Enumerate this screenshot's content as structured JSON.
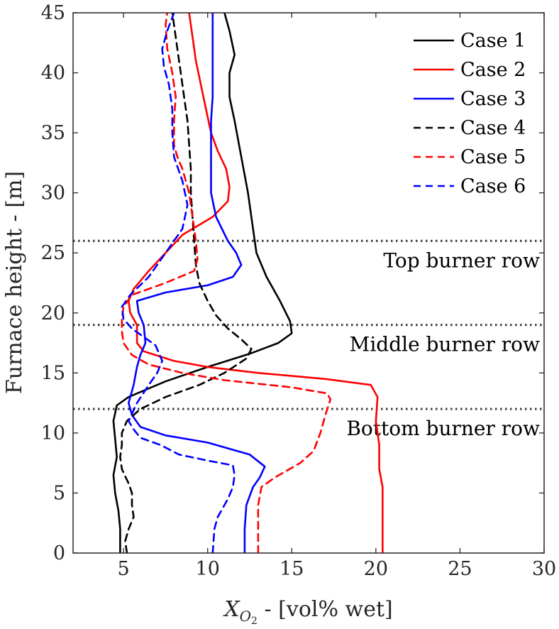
{
  "chart_data": {
    "type": "line",
    "xlabel_prefix": "X",
    "xlabel_subscript": "O",
    "xlabel_subsubscript": "2",
    "xlabel_suffix": " - [vol% wet]",
    "ylabel": "Furnace height - [m]",
    "xlim": [
      2,
      30
    ],
    "ylim": [
      0,
      45
    ],
    "xticks": [
      5,
      10,
      15,
      20,
      25,
      30
    ],
    "yticks": [
      0,
      5,
      10,
      15,
      20,
      25,
      30,
      35,
      40,
      45
    ],
    "grid": false,
    "legend_position": "top-right",
    "reference_lines": [
      {
        "y": 26,
        "label": "Top burner row"
      },
      {
        "y": 19,
        "label": "Middle burner row"
      },
      {
        "y": 12,
        "label": "Bottom burner row"
      }
    ],
    "series": [
      {
        "name": "Case 1",
        "color": "#000000",
        "dash": "solid",
        "points": [
          [
            4.8,
            0
          ],
          [
            4.8,
            2
          ],
          [
            4.7,
            3.5
          ],
          [
            4.5,
            5
          ],
          [
            4.4,
            6.5
          ],
          [
            4.6,
            8
          ],
          [
            4.5,
            9.5
          ],
          [
            4.4,
            11
          ],
          [
            4.6,
            12.3
          ],
          [
            5.3,
            13
          ],
          [
            7.5,
            14.3
          ],
          [
            10,
            15.5
          ],
          [
            12.5,
            16.6
          ],
          [
            14.2,
            17.5
          ],
          [
            15,
            18.3
          ],
          [
            14.9,
            19.3
          ],
          [
            14.3,
            21
          ],
          [
            13.5,
            23
          ],
          [
            12.9,
            25
          ],
          [
            12.7,
            27
          ],
          [
            12.4,
            30
          ],
          [
            12,
            33
          ],
          [
            11.6,
            36
          ],
          [
            11.3,
            38
          ],
          [
            11.3,
            40
          ],
          [
            11.6,
            41.5
          ],
          [
            11.3,
            43.5
          ],
          [
            11,
            45
          ]
        ]
      },
      {
        "name": "Case 2",
        "color": "#ff0000",
        "dash": "solid",
        "points": [
          [
            20.4,
            0
          ],
          [
            20.4,
            3
          ],
          [
            20.4,
            5.5
          ],
          [
            20.2,
            7
          ],
          [
            20.2,
            9
          ],
          [
            20.0,
            11
          ],
          [
            20.1,
            13
          ],
          [
            19.7,
            14
          ],
          [
            17,
            14.5
          ],
          [
            13,
            15
          ],
          [
            10,
            15.5
          ],
          [
            8,
            16
          ],
          [
            6.2,
            16.8
          ],
          [
            5.8,
            17.5
          ],
          [
            5.8,
            19
          ],
          [
            5.4,
            20
          ],
          [
            5.3,
            21
          ],
          [
            5.6,
            22
          ],
          [
            6.5,
            23.5
          ],
          [
            7.5,
            25
          ],
          [
            8.5,
            26.5
          ],
          [
            10.3,
            28
          ],
          [
            11.2,
            29.3
          ],
          [
            11.3,
            30.5
          ],
          [
            11.1,
            32
          ],
          [
            10.6,
            33.5
          ],
          [
            10.2,
            35
          ],
          [
            9.9,
            37
          ],
          [
            9.6,
            39
          ],
          [
            9.3,
            41
          ],
          [
            9.1,
            43
          ],
          [
            8.9,
            45
          ]
        ]
      },
      {
        "name": "Case 3",
        "color": "#0000ff",
        "dash": "solid",
        "points": [
          [
            12.2,
            0
          ],
          [
            12.2,
            2
          ],
          [
            12.3,
            4
          ],
          [
            12.7,
            5.5
          ],
          [
            13.1,
            6.3
          ],
          [
            13.4,
            7.2
          ],
          [
            12.5,
            8.2
          ],
          [
            10,
            9.2
          ],
          [
            7.5,
            9.8
          ],
          [
            6,
            10.5
          ],
          [
            5.5,
            11.5
          ],
          [
            5.3,
            12.5
          ],
          [
            5.6,
            14
          ],
          [
            5.8,
            15.5
          ],
          [
            6,
            16.5
          ],
          [
            6.3,
            17.5
          ],
          [
            6.2,
            19
          ],
          [
            5.9,
            20
          ],
          [
            5.8,
            21
          ],
          [
            7.5,
            21.7
          ],
          [
            10,
            22.3
          ],
          [
            11.5,
            23
          ],
          [
            12,
            24
          ],
          [
            11.7,
            25
          ],
          [
            11.2,
            26
          ],
          [
            10.5,
            28
          ],
          [
            10.2,
            30
          ],
          [
            10.2,
            32
          ],
          [
            10.2,
            34
          ],
          [
            10.2,
            36
          ],
          [
            10.3,
            38
          ],
          [
            10.3,
            40
          ],
          [
            10.3,
            42
          ],
          [
            10.3,
            45
          ]
        ]
      },
      {
        "name": "Case 4",
        "color": "#000000",
        "dash": "dashed",
        "points": [
          [
            5.2,
            0
          ],
          [
            5.1,
            1
          ],
          [
            5.3,
            2
          ],
          [
            5.6,
            3
          ],
          [
            5.5,
            4
          ],
          [
            5.5,
            5
          ],
          [
            5.3,
            5.8
          ],
          [
            5.1,
            6.4
          ],
          [
            4.9,
            7
          ],
          [
            4.8,
            8
          ],
          [
            4.9,
            9
          ],
          [
            4.9,
            10
          ],
          [
            5.2,
            11
          ],
          [
            6,
            12
          ],
          [
            7.5,
            13
          ],
          [
            9.5,
            14
          ],
          [
            11,
            15
          ],
          [
            12.3,
            16.2
          ],
          [
            12.6,
            17
          ],
          [
            12,
            17.8
          ],
          [
            11.2,
            18.7
          ],
          [
            10.5,
            19.8
          ],
          [
            10,
            21
          ],
          [
            9.5,
            22.5
          ],
          [
            9.3,
            24
          ],
          [
            9.2,
            26
          ],
          [
            9.1,
            28
          ],
          [
            9.0,
            30
          ],
          [
            9.0,
            32
          ],
          [
            8.9,
            34
          ],
          [
            8.8,
            36
          ],
          [
            8.6,
            38
          ],
          [
            8.4,
            40
          ],
          [
            8.2,
            42
          ],
          [
            8.0,
            44
          ],
          [
            7.9,
            45
          ]
        ]
      },
      {
        "name": "Case 5",
        "color": "#ff0000",
        "dash": "dashed",
        "points": [
          [
            13,
            0
          ],
          [
            13,
            2
          ],
          [
            13,
            4
          ],
          [
            13.2,
            5.5
          ],
          [
            14,
            6.3
          ],
          [
            15.5,
            7.5
          ],
          [
            16.3,
            8.5
          ],
          [
            16.7,
            10
          ],
          [
            17,
            11.5
          ],
          [
            17.3,
            12.8
          ],
          [
            17.1,
            13.3
          ],
          [
            15,
            13.8
          ],
          [
            11,
            14.4
          ],
          [
            8.5,
            15
          ],
          [
            6.5,
            15.7
          ],
          [
            5.5,
            16.5
          ],
          [
            5.0,
            17.5
          ],
          [
            4.9,
            18.5
          ],
          [
            4.9,
            19.5
          ],
          [
            5.0,
            20.5
          ],
          [
            5.5,
            21.5
          ],
          [
            7.5,
            22.5
          ],
          [
            9.2,
            23.5
          ],
          [
            9.4,
            24.5
          ],
          [
            9.3,
            26
          ],
          [
            9.1,
            28
          ],
          [
            8.9,
            30
          ],
          [
            8.5,
            32
          ],
          [
            8.2,
            33
          ],
          [
            8.0,
            34
          ],
          [
            8.0,
            36
          ],
          [
            8.1,
            38
          ],
          [
            7.9,
            40
          ],
          [
            7.6,
            42
          ],
          [
            7.5,
            44
          ],
          [
            7.6,
            45
          ]
        ]
      },
      {
        "name": "Case 6",
        "color": "#0000ff",
        "dash": "dashed",
        "points": [
          [
            10.3,
            0
          ],
          [
            10.4,
            2
          ],
          [
            10.6,
            3
          ],
          [
            11.2,
            4.5
          ],
          [
            11.5,
            5.5
          ],
          [
            11.6,
            6.5
          ],
          [
            11.5,
            7.3
          ],
          [
            10,
            7.7
          ],
          [
            8.3,
            8.2
          ],
          [
            7.2,
            9
          ],
          [
            6,
            9.6
          ],
          [
            5.6,
            10.3
          ],
          [
            5.3,
            11
          ],
          [
            5.8,
            12.5
          ],
          [
            6.5,
            14
          ],
          [
            7.0,
            15
          ],
          [
            7.3,
            16
          ],
          [
            6.9,
            17.3
          ],
          [
            6.2,
            18
          ],
          [
            5.5,
            18.7
          ],
          [
            5.0,
            19.5
          ],
          [
            4.9,
            20.5
          ],
          [
            5.4,
            21.5
          ],
          [
            6.5,
            23
          ],
          [
            7.5,
            25
          ],
          [
            8.5,
            27
          ],
          [
            8.8,
            29
          ],
          [
            8.5,
            31
          ],
          [
            8.0,
            33
          ],
          [
            7.9,
            35
          ],
          [
            7.9,
            37
          ],
          [
            7.7,
            39
          ],
          [
            7.4,
            40.5
          ],
          [
            7.3,
            42
          ],
          [
            7.6,
            43.5
          ],
          [
            8.0,
            45
          ]
        ]
      }
    ]
  }
}
